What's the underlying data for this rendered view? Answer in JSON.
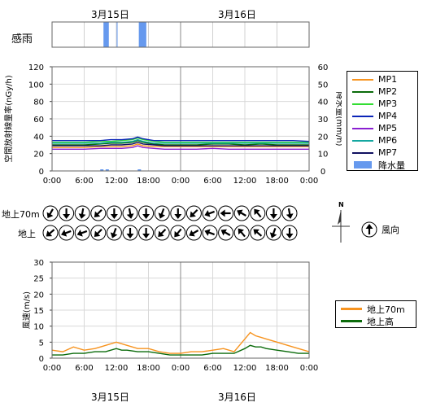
{
  "dates": [
    "3月15日",
    "3月16日"
  ],
  "date_row_labels": [
    "3月15日",
    "3月16日"
  ],
  "rain_panel": {
    "label": "感雨",
    "periods": [
      [
        9.6,
        10.6
      ],
      [
        12.0,
        12.2
      ],
      [
        16.2,
        17.6
      ]
    ]
  },
  "colors": {
    "MP1": "#f7931e",
    "MP2": "#0b6b0b",
    "MP3": "#33dd33",
    "MP4": "#0b24b8",
    "MP5": "#8a1fd1",
    "MP6": "#14a7a0",
    "MP7": "#101060",
    "rain": "#6699ee",
    "wind70": "#f7931e",
    "wind_ground": "#0b6b0b"
  },
  "dose_legend": [
    "MP1",
    "MP2",
    "MP3",
    "MP4",
    "MP5",
    "MP6",
    "MP7"
  ],
  "rain_legend": "降水量",
  "wind_legend": [
    "地上70m",
    "地上高"
  ],
  "direction_row_labels": [
    "地上70m",
    "地上"
  ],
  "wind_dir_legend": {
    "label": "風向",
    "north_label": "N"
  },
  "chart_data": [
    {
      "type": "line",
      "ylabel": "空間放射線量率(nGy/h)",
      "y2label": "降水量(mm/h)",
      "ylim": [
        0,
        120
      ],
      "yticks": [
        0,
        20,
        40,
        60,
        80,
        100,
        120
      ],
      "y2lim": [
        0,
        60
      ],
      "y2ticks": [
        0,
        10,
        20,
        30,
        40,
        50,
        60
      ],
      "xlim": [
        0,
        48
      ],
      "xticks": [
        "0:00",
        "6:00",
        "12:00",
        "18:00",
        "0:00",
        "6:00",
        "12:00",
        "18:00",
        "0:00"
      ],
      "grid": true,
      "x": [
        0,
        3,
        6,
        9,
        11,
        13,
        15,
        16,
        17,
        19,
        21,
        24,
        27,
        30,
        33,
        36,
        39,
        42,
        45,
        48
      ],
      "series": [
        {
          "name": "MP1",
          "values": [
            27,
            27,
            27,
            28,
            28,
            28,
            29,
            31,
            29,
            28,
            28,
            28,
            28,
            28,
            28,
            28,
            28,
            28,
            28,
            28
          ]
        },
        {
          "name": "MP2",
          "values": [
            30,
            30,
            30,
            31,
            32,
            32,
            33,
            35,
            33,
            31,
            30,
            30,
            30,
            31,
            31,
            30,
            31,
            30,
            30,
            30
          ]
        },
        {
          "name": "MP3",
          "values": [
            33,
            33,
            33,
            34,
            34,
            35,
            36,
            38,
            36,
            34,
            33,
            33,
            33,
            33,
            33,
            33,
            33,
            33,
            33,
            33
          ]
        },
        {
          "name": "MP4",
          "values": [
            35,
            35,
            35,
            35,
            36,
            36,
            37,
            39,
            37,
            35,
            35,
            35,
            35,
            35,
            35,
            35,
            35,
            35,
            35,
            34
          ]
        },
        {
          "name": "MP5",
          "values": [
            25,
            25,
            25,
            26,
            26,
            26,
            27,
            29,
            27,
            26,
            25,
            25,
            25,
            26,
            25,
            25,
            25,
            25,
            25,
            25
          ]
        },
        {
          "name": "MP6",
          "values": [
            32,
            32,
            32,
            32,
            33,
            33,
            34,
            36,
            34,
            32,
            32,
            32,
            32,
            32,
            32,
            32,
            32,
            32,
            32,
            32
          ]
        },
        {
          "name": "MP7",
          "values": [
            29,
            29,
            29,
            29,
            30,
            30,
            31,
            33,
            31,
            30,
            29,
            29,
            29,
            29,
            29,
            29,
            29,
            29,
            29,
            29
          ]
        }
      ],
      "rain": {
        "name": "降水量",
        "x": [
          9,
          10,
          16
        ],
        "values": [
          0.5,
          0.5,
          0.3
        ]
      }
    },
    {
      "type": "line",
      "ylabel": "風速(m/s)",
      "ylim": [
        0,
        30
      ],
      "yticks": [
        0,
        5,
        10,
        15,
        20,
        25,
        30
      ],
      "xlim": [
        0,
        48
      ],
      "xticks": [
        "0:00",
        "6:00",
        "12:00",
        "18:00",
        "0:00",
        "6:00",
        "12:00",
        "18:00",
        "0:00"
      ],
      "grid": true,
      "x": [
        0,
        2,
        4,
        6,
        8,
        10,
        12,
        13,
        14,
        16,
        18,
        20,
        22,
        24,
        26,
        28,
        30,
        32,
        34,
        36,
        37,
        38,
        39,
        40,
        42,
        44,
        46,
        48
      ],
      "series": [
        {
          "name": "地上70m",
          "values": [
            2.5,
            2,
            3.5,
            2.5,
            3,
            4,
            5,
            4.5,
            4,
            3,
            3,
            2,
            1.5,
            1.5,
            2,
            2,
            2.5,
            3,
            2,
            6,
            8,
            7,
            6.5,
            6,
            5,
            4,
            3,
            2
          ]
        },
        {
          "name": "地上高",
          "values": [
            1,
            1,
            1.5,
            1.5,
            2,
            2,
            3,
            2.5,
            2.5,
            2,
            2,
            1.5,
            1,
            1,
            1,
            1,
            1.5,
            1.5,
            1.5,
            3,
            4,
            3.5,
            3.5,
            3,
            2.5,
            2,
            1.5,
            1.5
          ]
        }
      ]
    }
  ],
  "wind_directions": {
    "rows": [
      "地上70m",
      "地上"
    ],
    "hours": [
      0,
      3,
      6,
      9,
      12,
      15,
      18,
      21,
      24,
      27,
      30,
      33,
      36,
      39,
      42,
      45
    ],
    "upper_toward_deg": [
      210,
      180,
      190,
      225,
      180,
      170,
      180,
      200,
      180,
      225,
      250,
      270,
      300,
      320,
      180,
      170
    ],
    "lower_toward_deg": [
      230,
      250,
      250,
      225,
      200,
      180,
      180,
      225,
      220,
      240,
      290,
      300,
      320,
      310,
      200,
      180
    ]
  }
}
